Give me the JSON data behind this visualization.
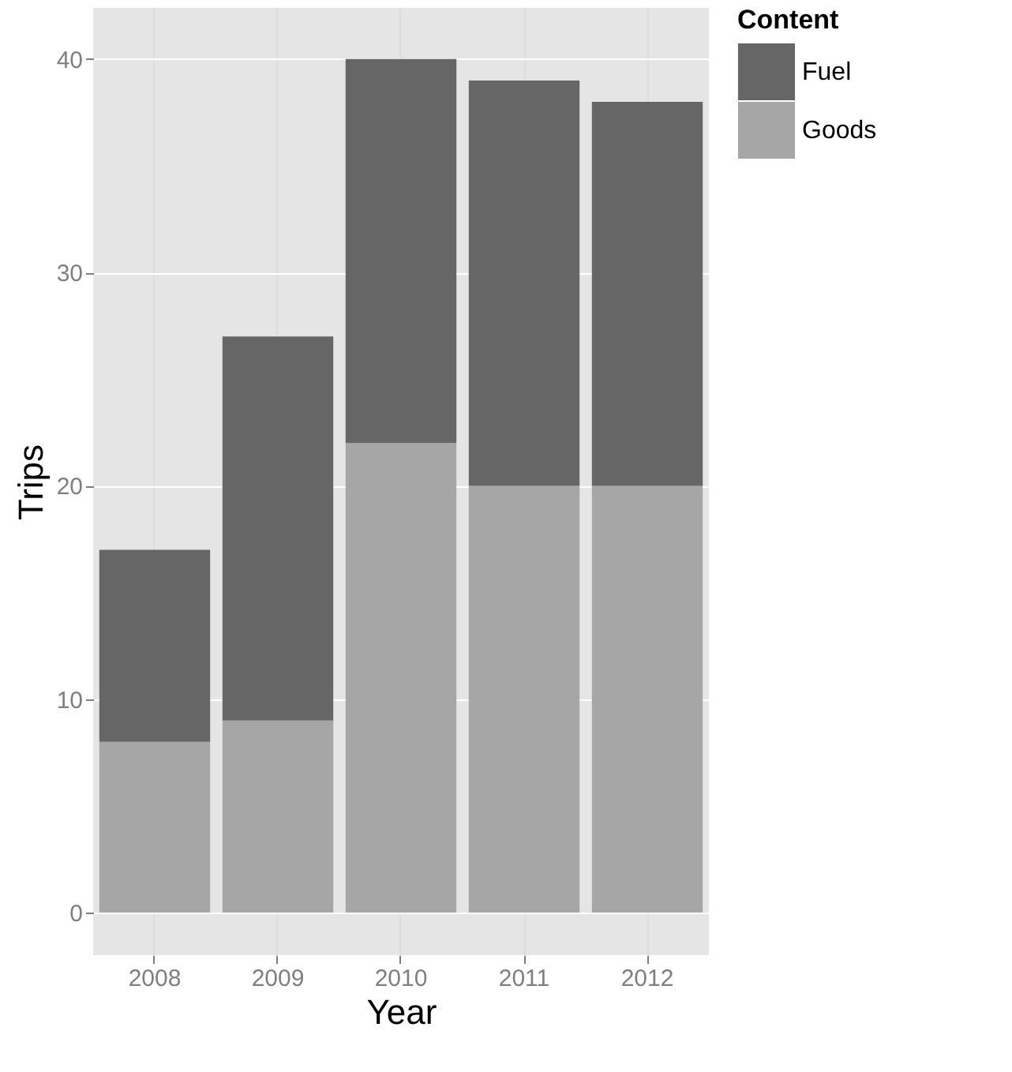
{
  "chart_data": {
    "type": "bar",
    "stacked": true,
    "xlabel": "Year",
    "ylabel": "Trips",
    "legend_title": "Content",
    "legend": "right",
    "grid": true,
    "categories": [
      "2008",
      "2009",
      "2010",
      "2011",
      "2012"
    ],
    "series": [
      {
        "name": "Goods",
        "color": "#a6a6a6",
        "values": [
          8,
          9,
          22,
          20,
          20
        ]
      },
      {
        "name": "Fuel",
        "color": "#666666",
        "values": [
          9,
          18,
          18,
          19,
          18
        ]
      }
    ],
    "ylim": [
      -2,
      42.4
    ],
    "yticks": [
      0,
      10,
      20,
      30,
      40
    ]
  }
}
